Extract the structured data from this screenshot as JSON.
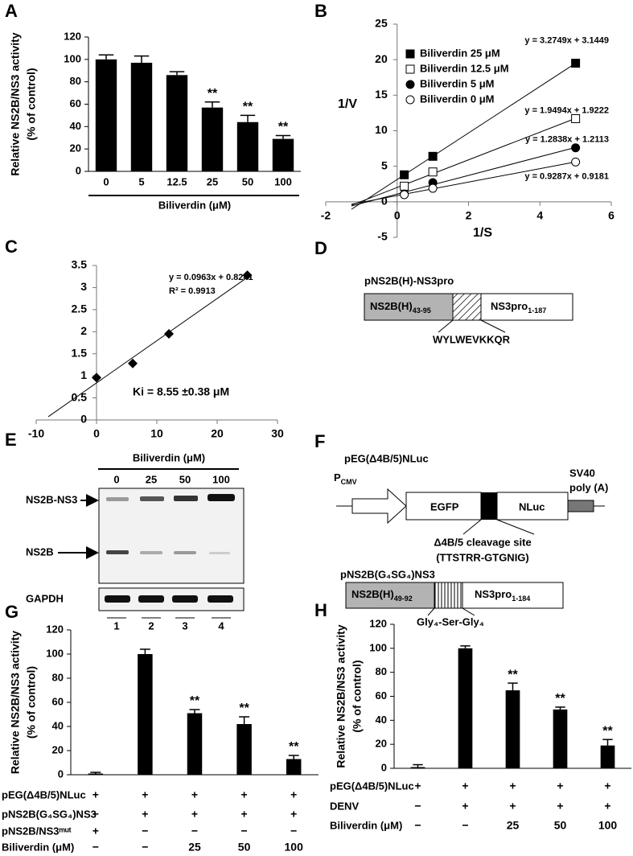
{
  "chart_data": [
    {
      "panel": "A",
      "type": "bar",
      "ylabel": [
        "Relative NS2B/NS3 activity",
        "(% of control)"
      ],
      "xlabel": "Biliverdin (μM)",
      "categories": [
        "0",
        "5",
        "12.5",
        "25",
        "50",
        "100"
      ],
      "values": [
        100,
        97,
        86,
        57,
        44,
        29
      ],
      "errors": [
        4,
        6,
        3,
        5,
        6,
        3
      ],
      "significance": [
        null,
        null,
        null,
        "**",
        "**",
        "**"
      ],
      "color": "#000000",
      "ylim": [
        0,
        120
      ],
      "yticks": [
        0,
        20,
        40,
        60,
        80,
        100,
        120
      ]
    },
    {
      "panel": "B",
      "type": "scatter",
      "xlabel": "1/S",
      "ylabel": "1/V",
      "x": [
        0.2,
        1,
        5
      ],
      "series": [
        {
          "name": "Biliverdin 25 μM",
          "marker": "square",
          "filled": true,
          "color": "#000000",
          "values": [
            3.8,
            6.4,
            19.5
          ],
          "equation": "y = 3.2749x + 3.1449"
        },
        {
          "name": "Biliverdin 12.5 μM",
          "marker": "square",
          "filled": false,
          "color": "#000000",
          "values": [
            2.2,
            4.2,
            11.7
          ],
          "equation": "y = 1.9494x + 1.9222"
        },
        {
          "name": "Biliverdin 5 μM",
          "marker": "circle",
          "filled": true,
          "color": "#000000",
          "values": [
            1.1,
            2.7,
            7.6
          ],
          "equation": "y = 1.2838x + 1.2113"
        },
        {
          "name": "Biliverdin 0 μM",
          "marker": "circle",
          "filled": false,
          "color": "#000000",
          "values": [
            1.0,
            1.9,
            5.6
          ],
          "equation": "y = 0.9287x + 0.9181"
        }
      ],
      "xlim": [
        -2,
        6
      ],
      "xticks": [
        -2,
        0,
        2,
        4,
        6
      ],
      "ylim": [
        -5,
        25
      ],
      "yticks": [
        -5,
        0,
        5,
        10,
        15,
        20,
        25
      ],
      "legend": "top-left",
      "trendline": true
    },
    {
      "panel": "C",
      "type": "scatter",
      "x": [
        0,
        6,
        12,
        25
      ],
      "values": [
        0.96,
        1.28,
        1.95,
        3.28
      ],
      "marker": "diamond",
      "color": "#000000",
      "annotations": [
        "y = 0.0963x + 0.8241",
        "R² = 0.9913",
        "Ki = 8.55 ±0.38 μM"
      ],
      "xlim": [
        -10,
        30
      ],
      "xticks": [
        -10,
        0,
        10,
        20,
        30
      ],
      "ylim": [
        0,
        3.5
      ],
      "yticks": [
        0,
        0.5,
        1,
        1.5,
        2,
        2.5,
        3,
        3.5
      ],
      "trendline": true
    },
    {
      "panel": "G",
      "type": "bar",
      "ylabel": [
        "Relative NS2B/NS3 activity",
        "(% of control)"
      ],
      "values": [
        1,
        100,
        51,
        42,
        13
      ],
      "errors": [
        1,
        4,
        3,
        6,
        3
      ],
      "significance": [
        null,
        null,
        "**",
        "**",
        "**"
      ],
      "color": "#000000",
      "ylim": [
        0,
        120
      ],
      "yticks": [
        0,
        20,
        40,
        60,
        80,
        100,
        120
      ],
      "conditions": [
        {
          "label": "pEG(Δ4B/5)NLuc",
          "values": [
            "+",
            "+",
            "+",
            "+",
            "+"
          ]
        },
        {
          "label": "pNS2B(G₄SG₄)NS3",
          "values": [
            "−",
            "+",
            "+",
            "+",
            "+"
          ]
        },
        {
          "label": "pNS2B/NS3ᵐᵘᵗ",
          "values": [
            "+",
            "−",
            "−",
            "−",
            "−"
          ]
        },
        {
          "label": "Biliverdin (μM)",
          "values": [
            "−",
            "−",
            "25",
            "50",
            "100"
          ]
        }
      ]
    },
    {
      "panel": "H",
      "type": "bar",
      "ylabel": [
        "Relative NS2B/NS3 activity",
        "(% of control)"
      ],
      "values": [
        1,
        100,
        65,
        49,
        19
      ],
      "errors": [
        2,
        2,
        6,
        2,
        5
      ],
      "significance": [
        null,
        null,
        "**",
        "**",
        "**"
      ],
      "color": "#000000",
      "ylim": [
        0,
        120
      ],
      "yticks": [
        0,
        20,
        40,
        60,
        80,
        100,
        120
      ],
      "conditions": [
        {
          "label": "pEG(Δ4B/5)NLuc",
          "values": [
            "+",
            "+",
            "+",
            "+",
            "+"
          ]
        },
        {
          "label": "DENV",
          "values": [
            "−",
            "+",
            "+",
            "+",
            "+"
          ]
        },
        {
          "label": "Biliverdin (μM)",
          "values": [
            "−",
            "−",
            "25",
            "50",
            "100"
          ]
        }
      ]
    }
  ],
  "diagrams": [
    {
      "panel": "D",
      "title": "pNS2B(H)-NS3pro",
      "segments": [
        {
          "name": "NS2B(H)",
          "sub": "43-95"
        },
        {
          "name": "NS3pro",
          "sub": "1-187"
        }
      ],
      "linker": "WYLWEVKKQR"
    },
    {
      "panel": "E",
      "header": "Biliverdin (μM)",
      "lanes": [
        "0",
        "25",
        "50",
        "100"
      ],
      "bands": [
        "NS2B-NS3",
        "NS2B",
        "GAPDH"
      ],
      "lane_numbers": [
        "1",
        "2",
        "3",
        "4"
      ]
    },
    {
      "panel": "F",
      "reporter": {
        "title": "pEG(Δ4B/5)NLuc",
        "promoter": {
          "name": "P",
          "sub": "CMV"
        },
        "segments": [
          "EGFP",
          "NLuc"
        ],
        "terminator": [
          "SV40",
          "poly (A)"
        ],
        "site": [
          "Δ4B/5 cleavage site",
          "(TTSTRR-GTGNIG)"
        ]
      },
      "protease": {
        "title": "pNS2B(G₄SG₄)NS3",
        "segments": [
          {
            "name": "NS2B(H)",
            "sub": "49-92"
          },
          {
            "name": "NS3pro",
            "sub": "1-184"
          }
        ],
        "linker": "Gly₄-Ser-Gly₄"
      }
    }
  ]
}
